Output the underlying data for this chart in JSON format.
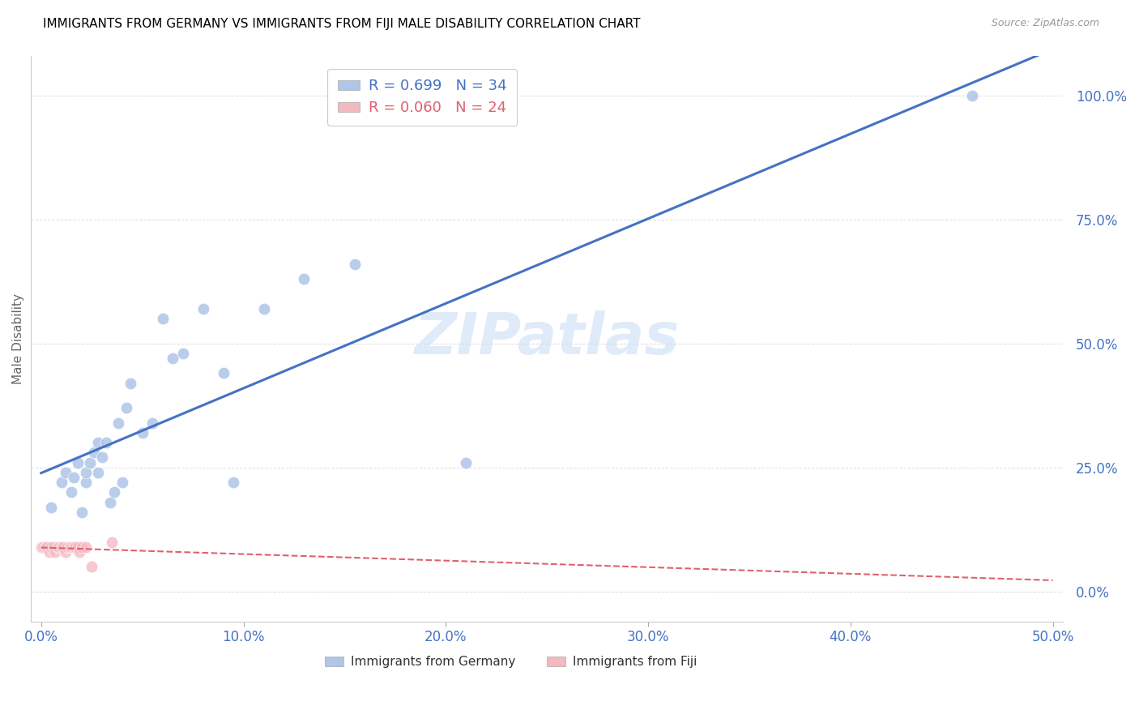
{
  "title": "IMMIGRANTS FROM GERMANY VS IMMIGRANTS FROM FIJI MALE DISABILITY CORRELATION CHART",
  "source": "Source: ZipAtlas.com",
  "ylabel": "Male Disability",
  "x_tick_labels": [
    "0.0%",
    "10.0%",
    "20.0%",
    "30.0%",
    "40.0%",
    "50.0%"
  ],
  "x_tick_positions": [
    0,
    0.1,
    0.2,
    0.3,
    0.4,
    0.5
  ],
  "y_tick_labels": [
    "0.0%",
    "25.0%",
    "50.0%",
    "75.0%",
    "100.0%"
  ],
  "y_tick_positions": [
    0,
    0.25,
    0.5,
    0.75,
    1.0
  ],
  "xlim": [
    -0.005,
    0.505
  ],
  "ylim": [
    -0.06,
    1.08
  ],
  "legend_line1": "R = 0.699   N = 34",
  "legend_line2": "R = 0.060   N = 24",
  "germany_color": "#aec6e8",
  "fiji_color": "#f4b8c1",
  "germany_line_color": "#4472C4",
  "fiji_line_color": "#E06070",
  "watermark": "ZIPatlas",
  "germany_scatter_x": [
    0.005,
    0.01,
    0.012,
    0.015,
    0.016,
    0.018,
    0.02,
    0.022,
    0.022,
    0.024,
    0.026,
    0.028,
    0.028,
    0.03,
    0.032,
    0.034,
    0.036,
    0.038,
    0.04,
    0.042,
    0.044,
    0.05,
    0.055,
    0.06,
    0.065,
    0.07,
    0.08,
    0.09,
    0.095,
    0.11,
    0.13,
    0.155,
    0.21,
    0.46
  ],
  "germany_scatter_y": [
    0.17,
    0.22,
    0.24,
    0.2,
    0.23,
    0.26,
    0.16,
    0.22,
    0.24,
    0.26,
    0.28,
    0.24,
    0.3,
    0.27,
    0.3,
    0.18,
    0.2,
    0.34,
    0.22,
    0.37,
    0.42,
    0.32,
    0.34,
    0.55,
    0.47,
    0.48,
    0.57,
    0.44,
    0.22,
    0.57,
    0.63,
    0.66,
    0.26,
    1.0
  ],
  "fiji_scatter_x": [
    0.0,
    0.001,
    0.002,
    0.003,
    0.004,
    0.005,
    0.006,
    0.007,
    0.008,
    0.009,
    0.01,
    0.011,
    0.012,
    0.013,
    0.014,
    0.015,
    0.016,
    0.017,
    0.018,
    0.019,
    0.02,
    0.022,
    0.025,
    0.035
  ],
  "fiji_scatter_y": [
    0.09,
    0.09,
    0.09,
    0.09,
    0.08,
    0.09,
    0.09,
    0.08,
    0.09,
    0.09,
    0.09,
    0.09,
    0.08,
    0.09,
    0.09,
    0.09,
    0.09,
    0.09,
    0.09,
    0.08,
    0.09,
    0.09,
    0.05,
    0.1
  ]
}
